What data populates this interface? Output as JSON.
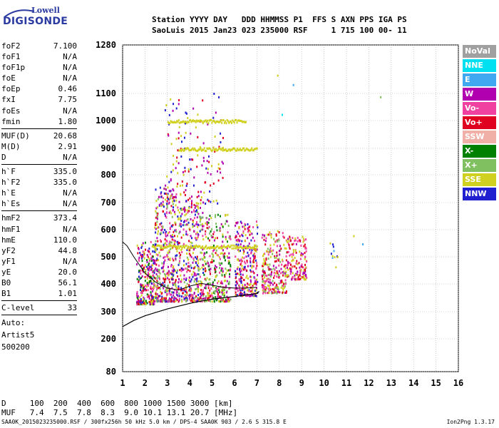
{
  "logo": {
    "top": "Lowell",
    "main": "DIGISONDE"
  },
  "header": {
    "line1": "Station YYYY DAY   DDD HHMMSS P1  FFS S AXN PPS IGA PS",
    "line2": "SaoLuis 2015 Jan23 023 235000 RSF     1 715 100 00- 11"
  },
  "params_group1": [
    {
      "label": "foF2",
      "value": "7.100"
    },
    {
      "label": "foF1",
      "value": "N/A"
    },
    {
      "label": "foF1p",
      "value": "N/A"
    },
    {
      "label": "foE",
      "value": "N/A"
    },
    {
      "label": "foEp",
      "value": "0.46"
    },
    {
      "label": "fxI",
      "value": "7.75"
    },
    {
      "label": "foEs",
      "value": "N/A"
    },
    {
      "label": "fmin",
      "value": "1.80"
    }
  ],
  "params_group2": [
    {
      "label": "MUF(D)",
      "value": "20.68"
    },
    {
      "label": "M(D)",
      "value": "2.91"
    },
    {
      "label": "D",
      "value": "N/A"
    }
  ],
  "params_group3": [
    {
      "label": "h`F",
      "value": "335.0"
    },
    {
      "label": "h`F2",
      "value": "335.0"
    },
    {
      "label": "h`E",
      "value": "N/A"
    },
    {
      "label": "h`Es",
      "value": "N/A"
    }
  ],
  "params_group4": [
    {
      "label": "hmF2",
      "value": "373.4"
    },
    {
      "label": "hmF1",
      "value": "N/A"
    },
    {
      "label": "hmE",
      "value": "110.0"
    },
    {
      "label": "yF2",
      "value": "44.8"
    },
    {
      "label": "yF1",
      "value": "N/A"
    },
    {
      "label": "yE",
      "value": "20.0"
    },
    {
      "label": "B0",
      "value": "56.1"
    },
    {
      "label": "B1",
      "value": "1.01"
    }
  ],
  "clevel": {
    "label": "C-level",
    "value": "33"
  },
  "auto": {
    "line1": "Auto:",
    "line2": "Artist5",
    "line3": "500200"
  },
  "bottom_table": {
    "d_row": "D     100  200  400  600  800 1000 1500 3000 [km]",
    "muf_row": "MUF   7.4  7.5  7.8  8.3  9.0 10.1 13.1 20.7 [MHz]"
  },
  "footer": "SAA0K_2015023235000.RSF / 300fx256h 50 kHz 5.0 km / DPS-4 SAA0K 903 / 2.6 S 315.8 E",
  "footer_right": "Ion2Png 1.3.17",
  "legend": [
    {
      "label": "NoVal",
      "color": "#a0a0a0"
    },
    {
      "label": "NNE",
      "color": "#00e0f0"
    },
    {
      "label": "E",
      "color": "#40a8f0"
    },
    {
      "label": "W",
      "color": "#b000b0"
    },
    {
      "label": "Vo-",
      "color": "#f040a0"
    },
    {
      "label": "Vo+",
      "color": "#e00020"
    },
    {
      "label": "SSW",
      "color": "#f0b0a8"
    },
    {
      "label": "X-",
      "color": "#008000"
    },
    {
      "label": "X+",
      "color": "#80c060"
    },
    {
      "label": "SSE",
      "color": "#d0d020"
    },
    {
      "label": "NNW",
      "color": "#2020d0"
    }
  ],
  "chart_data": {
    "type": "scatter",
    "xlim": [
      1,
      16
    ],
    "ylim": [
      80,
      1280
    ],
    "x_ticks": [
      "1",
      "2",
      "3",
      "4",
      "5",
      "6",
      "7",
      "8",
      "9",
      "10",
      "11",
      "12",
      "13",
      "14",
      "15",
      "16"
    ],
    "y_ticks": [
      "80",
      "200",
      "300",
      "400",
      "500",
      "600",
      "700",
      "800",
      "900",
      "1000",
      "1100",
      "1280"
    ],
    "grid": true,
    "profile_curve": {
      "x": [
        1.0,
        1.5,
        2.0,
        2.5,
        3.0,
        3.5,
        4.0,
        4.5,
        5.0,
        5.5,
        6.0,
        6.5,
        7.0,
        7.1
      ],
      "y": [
        245,
        268,
        285,
        298,
        310,
        320,
        330,
        338,
        345,
        350,
        355,
        360,
        366,
        373
      ]
    },
    "trace_curve": {
      "x": [
        1.0,
        1.2,
        1.5,
        2.0,
        2.5,
        3.0,
        3.5,
        4.0,
        4.5,
        5.0,
        5.5,
        6.0,
        6.5,
        7.0
      ],
      "y": [
        555,
        540,
        500,
        440,
        405,
        385,
        378,
        392,
        402,
        395,
        388,
        385,
        385,
        388
      ]
    },
    "clusters": [
      {
        "x": [
          1.6,
          2.4
        ],
        "y": [
          330,
          560
        ],
        "n": 260,
        "colors": [
          "#e00020",
          "#b000b0",
          "#f040a0",
          "#d0d020",
          "#2020d0",
          "#008000"
        ]
      },
      {
        "x": [
          2.4,
          3.4
        ],
        "y": [
          340,
          760
        ],
        "n": 420,
        "colors": [
          "#e00020",
          "#b000b0",
          "#d0d020",
          "#f040a0",
          "#2020d0",
          "#80c060"
        ]
      },
      {
        "x": [
          3.4,
          4.6
        ],
        "y": [
          340,
          700
        ],
        "n": 380,
        "colors": [
          "#d0d020",
          "#e00020",
          "#80c060",
          "#b000b0",
          "#f040a0",
          "#2020d0"
        ]
      },
      {
        "x": [
          4.6,
          5.8
        ],
        "y": [
          340,
          660
        ],
        "n": 300,
        "colors": [
          "#80c060",
          "#d0d020",
          "#e00020",
          "#b000b0",
          "#f040a0",
          "#008000"
        ]
      },
      {
        "x": [
          6.0,
          7.0
        ],
        "y": [
          360,
          640
        ],
        "n": 280,
        "colors": [
          "#e00020",
          "#f040a0",
          "#b000b0",
          "#d0d020",
          "#2020d0"
        ]
      },
      {
        "x": [
          7.2,
          8.3
        ],
        "y": [
          370,
          600
        ],
        "n": 260,
        "colors": [
          "#d0d020",
          "#e00020",
          "#b000b0",
          "#f040a0",
          "#80c060"
        ]
      },
      {
        "x": [
          8.3,
          9.2
        ],
        "y": [
          420,
          580
        ],
        "n": 160,
        "colors": [
          "#d0d020",
          "#b000b0",
          "#e00020",
          "#f040a0"
        ]
      },
      {
        "x": [
          2.8,
          5.5
        ],
        "y": [
          700,
          1110
        ],
        "n": 160,
        "colors": [
          "#d0d020",
          "#b000b0",
          "#2020d0",
          "#e00020"
        ]
      },
      {
        "x": [
          10.2,
          10.6
        ],
        "y": [
          500,
          560
        ],
        "n": 10,
        "colors": [
          "#40a8f0",
          "#d0d020",
          "#2020d0"
        ]
      }
    ],
    "bands": [
      {
        "x": [
          2.3,
          7.0
        ],
        "y": 540,
        "color": "#d0d020"
      },
      {
        "x": [
          3.5,
          7.0
        ],
        "y": 900,
        "color": "#d0d020"
      },
      {
        "x": [
          3.0,
          6.5
        ],
        "y": 1000,
        "color": "#d0d020"
      }
    ],
    "outliers": [
      {
        "x": 12.5,
        "y": 1090,
        "color": "#80c060"
      },
      {
        "x": 8.6,
        "y": 1135,
        "color": "#40a8f0"
      },
      {
        "x": 8.1,
        "y": 1025,
        "color": "#00e0f0"
      },
      {
        "x": 11.3,
        "y": 580,
        "color": "#d0d020"
      },
      {
        "x": 11.7,
        "y": 550,
        "color": "#40a8f0"
      },
      {
        "x": 10.5,
        "y": 465,
        "color": "#d0d020"
      },
      {
        "x": 7.9,
        "y": 1170,
        "color": "#d0d020"
      }
    ]
  }
}
